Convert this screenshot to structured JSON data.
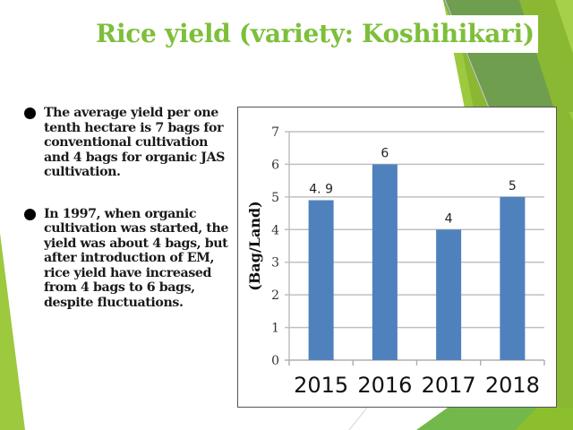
{
  "slide": {
    "title": "Rice yield (variety: Koshihikari)",
    "bullets": [
      {
        "text": "The average yield per one tenth hectare is 7 bags for conventional cultivation and 4 bags for organic JAS cultivation."
      },
      {
        "text": "In 1997, when organic cultivation was started, the yield was about 4 bags, but after introduction of EM, rice yield have increased from 4 bags to 6 bags, despite fluctuations."
      }
    ],
    "colors": {
      "title": "#7dbf3a",
      "bar": "#4f81bd",
      "bg_dark_green": "#6e9e4e",
      "bg_light_green": "#8cbf2e",
      "bg_lime": "#9cc93e"
    }
  },
  "chart_data": {
    "type": "bar",
    "title": "",
    "categories": [
      "2015",
      "2016",
      "2017",
      "2018"
    ],
    "values": [
      4.9,
      6,
      4,
      5
    ],
    "data_labels": [
      "4. 9",
      "6",
      "4",
      "5"
    ],
    "xlabel": "",
    "ylabel": "(Bag/Land)",
    "ylim": [
      0,
      7
    ],
    "yticks": [
      "0",
      "1",
      "2",
      "3",
      "4",
      "5",
      "6",
      "7"
    ],
    "grid": true,
    "legend": null,
    "bar_color": "#4f81bd"
  }
}
